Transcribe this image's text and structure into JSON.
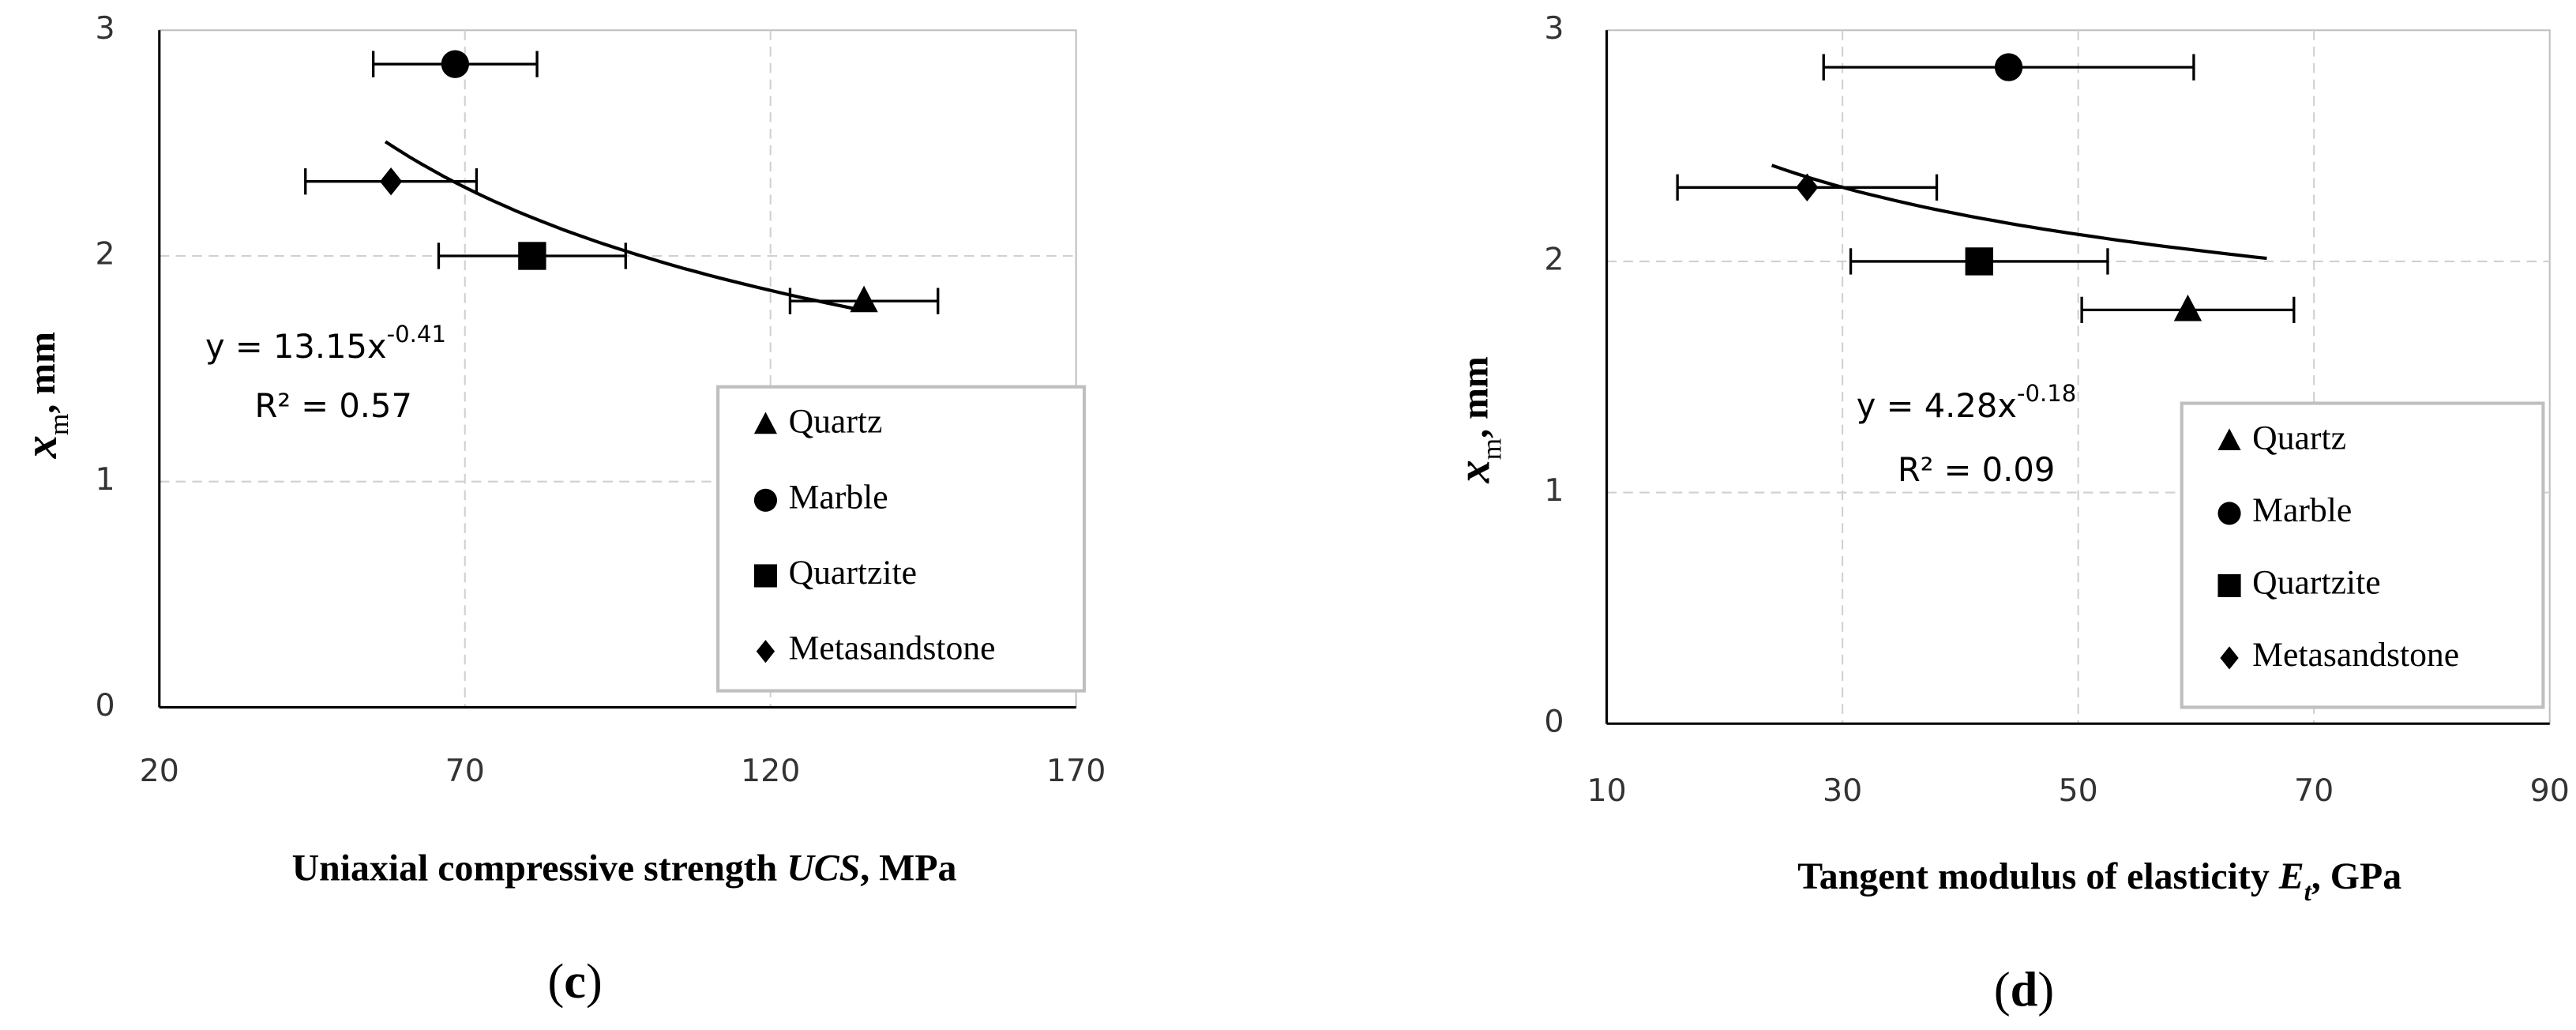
{
  "chart_data": [
    {
      "type": "scatter",
      "panel_label": {
        "open": "(",
        "letter": "c",
        "close": ")"
      },
      "x_label": {
        "text": "Uniaxial compressive strength ",
        "italic": "UCS",
        "unit": ", MPa"
      },
      "y_label": {
        "symbol": "x",
        "subscript": "m",
        "unit": ", mm"
      },
      "xlim": [
        20,
        170
      ],
      "xticks": [
        20,
        70,
        120,
        170
      ],
      "ylim": [
        0,
        3
      ],
      "yticks": [
        0,
        1,
        2,
        3
      ],
      "grid": true,
      "legend": "lower right",
      "series": [
        {
          "name": "Quartz",
          "marker": "triangle",
          "color": "#000000",
          "x": [
            135.3
          ],
          "values": [
            1.8
          ],
          "x_errors": [
            12.1
          ]
        },
        {
          "name": "Marble",
          "marker": "circle",
          "color": "#000000",
          "x": [
            68.4
          ],
          "values": [
            2.85
          ],
          "x_errors": [
            13.4
          ]
        },
        {
          "name": "Quartzite",
          "marker": "square",
          "color": "#000000",
          "x": [
            81
          ],
          "values": [
            2.0
          ],
          "x_errors": [
            15.3
          ]
        },
        {
          "name": "Metasandstone",
          "marker": "diamond",
          "color": "#000000",
          "x": [
            57.9
          ],
          "values": [
            2.33
          ],
          "x_errors": [
            14
          ]
        }
      ],
      "trendline": {
        "equation": "y = 13.15x",
        "exponent": "-0.41",
        "r_squared": "R² = 0.57",
        "a": 13.15,
        "b": -0.41,
        "x_from": 57,
        "x_to": 135
      }
    },
    {
      "type": "scatter",
      "panel_label": {
        "open": "(",
        "letter": "d",
        "close": ")"
      },
      "x_label": {
        "text": "Tangent modulus of elasticity ",
        "italic": "E",
        "italic_sub": "t",
        "unit": ", GPa"
      },
      "y_label": {
        "symbol": "x",
        "subscript": "m",
        "unit": ", mm"
      },
      "xlim": [
        10,
        90
      ],
      "xticks": [
        10,
        30,
        50,
        70,
        90
      ],
      "ylim": [
        0,
        3
      ],
      "yticks": [
        0,
        1,
        2,
        3
      ],
      "grid": true,
      "legend": "lower right",
      "series": [
        {
          "name": "Quartz",
          "marker": "triangle",
          "color": "#000000",
          "x": [
            59.3
          ],
          "values": [
            1.79
          ],
          "x_errors": [
            9
          ]
        },
        {
          "name": "Marble",
          "marker": "circle",
          "color": "#000000",
          "x": [
            44.1
          ],
          "values": [
            2.84
          ],
          "x_errors": [
            15.7
          ]
        },
        {
          "name": "Quartzite",
          "marker": "square",
          "color": "#000000",
          "x": [
            41.6
          ],
          "values": [
            2.0
          ],
          "x_errors": [
            10.9
          ]
        },
        {
          "name": "Metasandstone",
          "marker": "diamond",
          "color": "#000000",
          "x": [
            27
          ],
          "values": [
            2.32
          ],
          "x_errors": [
            11
          ]
        }
      ],
      "trendline": {
        "equation": "y = 4.28x",
        "exponent": "-0.18",
        "r_squared": "R² = 0.09",
        "a": 4.28,
        "b": -0.18,
        "x_from": 24,
        "x_to": 66
      }
    }
  ]
}
